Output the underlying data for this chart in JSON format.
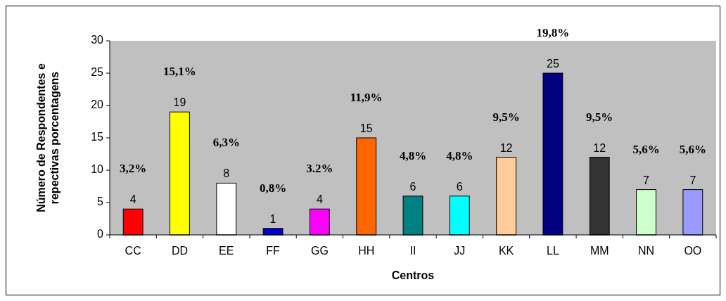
{
  "chart_data": {
    "type": "bar",
    "xlabel": "Centros",
    "ylabel": "Número de Respondentes e\nrepectivas porcentagens",
    "categories": [
      "CC",
      "DD",
      "EE",
      "FF",
      "GG",
      "HH",
      "II",
      "JJ",
      "KK",
      "LL",
      "MM",
      "NN",
      "OO"
    ],
    "values": [
      4,
      19,
      8,
      1,
      4,
      15,
      6,
      6,
      12,
      25,
      12,
      7,
      7
    ],
    "colors": [
      "#ff0000",
      "#ffff00",
      "#ffffff",
      "#0000cc",
      "#ff00ff",
      "#ff6600",
      "#008080",
      "#00ffff",
      "#ffcc99",
      "#000080",
      "#333333",
      "#ccffcc",
      "#9999ff"
    ],
    "ylim": [
      0,
      30
    ],
    "yticks": [
      0,
      5,
      10,
      15,
      20,
      25,
      30
    ],
    "data_labels": true,
    "annotations": [
      "3,2%",
      "15,1%",
      "6,3%",
      "0,8%",
      "3.2%",
      "11,9%",
      "4,8%",
      "4,8%",
      "9,5%",
      "19,8%",
      "9,5%",
      "5,6%",
      "5,6%"
    ]
  }
}
